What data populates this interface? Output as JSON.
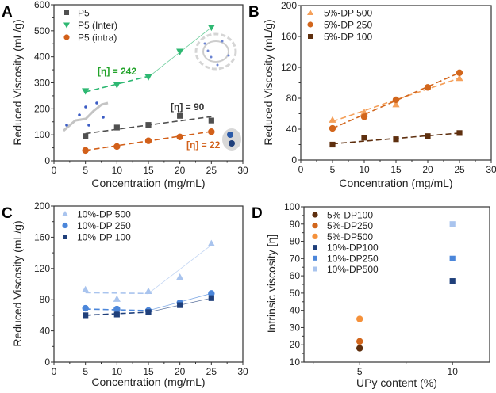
{
  "chart_data": [
    {
      "panel": "A",
      "type": "scatter",
      "xlabel": "Concentration (mg/mL)",
      "ylabel": "Reduced  Viscosity (mL/g)",
      "xlim": [
        0,
        30
      ],
      "ylim": [
        0,
        600
      ],
      "xticks": [
        "0",
        "5",
        "10",
        "15",
        "20",
        "25",
        "30"
      ],
      "yticks": [
        "0",
        "100",
        "200",
        "300",
        "400",
        "500",
        "600"
      ],
      "legend": "top-left",
      "series": [
        {
          "name": "P5",
          "marker": "square",
          "color": "#505050",
          "x": [
            5,
            10,
            15,
            20,
            25
          ],
          "y": [
            95,
            128,
            138,
            173,
            155
          ],
          "fits": [
            {
              "x": [
                5,
                25
              ],
              "y": [
                105,
                170
              ],
              "style": "dashed"
            }
          ]
        },
        {
          "name": "P5 (Inter)",
          "marker": "triangle-down",
          "color": "#2eb872",
          "x": [
            5,
            10,
            15,
            20,
            25
          ],
          "y": [
            268,
            292,
            322,
            420,
            513
          ],
          "fits": [
            {
              "x": [
                5,
                15
              ],
              "y": [
                265,
                325
              ],
              "style": "dashed"
            },
            {
              "x": [
                15,
                25
              ],
              "y": [
                322,
                513
              ],
              "style": "solid-light"
            }
          ]
        },
        {
          "name": "P5 (intra)",
          "marker": "circle",
          "color": "#d2601a",
          "x": [
            5,
            10,
            15,
            20,
            25
          ],
          "y": [
            40,
            55,
            77,
            92,
            112
          ],
          "fits": [
            {
              "x": [
                5,
                25
              ],
              "y": [
                40,
                113
              ],
              "style": "dashed"
            }
          ]
        }
      ],
      "annotations": [
        {
          "text": "[η] = 242",
          "color": "#22a32a"
        },
        {
          "text": "[η] = 90",
          "color": "#333333"
        },
        {
          "text": "[η] = 22",
          "color": "#d2601a"
        }
      ]
    },
    {
      "panel": "B",
      "type": "scatter",
      "xlabel": "Concentration (mg/mL)",
      "ylabel": "Reduced  Viscosity (mL/g)",
      "xlim": [
        0,
        30
      ],
      "ylim": [
        0,
        200
      ],
      "xticks": [
        "0",
        "5",
        "10",
        "15",
        "20",
        "25",
        "30"
      ],
      "yticks": [
        "0",
        "40",
        "80",
        "120",
        "160",
        "200"
      ],
      "legend": "top-left",
      "series": [
        {
          "name": "5%-DP 500",
          "marker": "triangle-up",
          "color": "#f5a05a",
          "x": [
            5,
            10,
            15,
            20,
            25
          ],
          "y": [
            52,
            62,
            72,
            94,
            106
          ],
          "fits": [
            {
              "x": [
                5,
                25
              ],
              "y": [
                50,
                106
              ],
              "style": "dashed"
            }
          ]
        },
        {
          "name": "5%-DP 250",
          "marker": "circle",
          "color": "#d2661c",
          "x": [
            5,
            10,
            15,
            20,
            25
          ],
          "y": [
            41,
            56,
            78,
            94,
            113
          ],
          "fits": [
            {
              "x": [
                5,
                25
              ],
              "y": [
                41,
                113
              ],
              "style": "dashed"
            }
          ]
        },
        {
          "name": "5%-DP 100",
          "marker": "square",
          "color": "#5e2f0e",
          "x": [
            5,
            10,
            15,
            20,
            25
          ],
          "y": [
            20,
            29,
            27,
            31,
            35
          ],
          "fits": [
            {
              "x": [
                5,
                25
              ],
              "y": [
                21,
                35
              ],
              "style": "dashed"
            }
          ]
        }
      ]
    },
    {
      "panel": "C",
      "type": "scatter",
      "xlabel": "Concentration (mg/mL)",
      "ylabel": "Reduced  Viscosity (mL/g)",
      "xlim": [
        0,
        30
      ],
      "ylim": [
        0,
        200
      ],
      "xticks": [
        "0",
        "5",
        "10",
        "15",
        "20",
        "25",
        "30"
      ],
      "yticks": [
        "0",
        "40",
        "80",
        "120",
        "160",
        "200"
      ],
      "legend": "top-left",
      "series": [
        {
          "name": "10%-DP 500",
          "marker": "triangle-up",
          "color": "#a9c4ee",
          "x": [
            5,
            10,
            15,
            20,
            25
          ],
          "y": [
            93,
            81,
            91,
            109,
            152
          ],
          "fits": [
            {
              "x": [
                5,
                15
              ],
              "y": [
                89,
                88
              ],
              "style": "dashed"
            },
            {
              "x": [
                15,
                25
              ],
              "y": [
                88,
                150
              ],
              "style": "solid-light"
            }
          ]
        },
        {
          "name": "10%-DP 250",
          "marker": "circle",
          "color": "#4b86da",
          "x": [
            5,
            10,
            15,
            20,
            25
          ],
          "y": [
            69,
            68,
            66,
            76,
            88
          ],
          "fits": [
            {
              "x": [
                5,
                15
              ],
              "y": [
                68,
                66
              ],
              "style": "dashed"
            },
            {
              "x": [
                15,
                25
              ],
              "y": [
                66,
                88
              ],
              "style": "solid-light"
            }
          ]
        },
        {
          "name": "10%-DP 100",
          "marker": "square",
          "color": "#1f3f7a",
          "x": [
            5,
            10,
            15,
            20,
            25
          ],
          "y": [
            60,
            61,
            64,
            73,
            82
          ],
          "fits": [
            {
              "x": [
                5,
                15
              ],
              "y": [
                60,
                64
              ],
              "style": "dashed"
            },
            {
              "x": [
                15,
                25
              ],
              "y": [
                64,
                82
              ],
              "style": "solid-light"
            }
          ]
        }
      ]
    },
    {
      "panel": "D",
      "type": "scatter",
      "xlabel": "UPy content (%)",
      "ylabel": "Intrinsic viscosity [η]",
      "xlim": [
        2,
        12
      ],
      "ylim": [
        10,
        100
      ],
      "xticks": [
        "5",
        "10"
      ],
      "yticks": [
        "10",
        "20",
        "30",
        "40",
        "50",
        "60",
        "70",
        "80",
        "90",
        "100"
      ],
      "legend": "top-left",
      "series": [
        {
          "name": "5%-DP100",
          "marker": "circle",
          "color": "#5e2f0e",
          "x": [
            5
          ],
          "y": [
            18
          ]
        },
        {
          "name": "5%-DP250",
          "marker": "circle",
          "color": "#d2661c",
          "x": [
            5
          ],
          "y": [
            22
          ]
        },
        {
          "name": "5%-DP500",
          "marker": "circle",
          "color": "#f5913a",
          "x": [
            5
          ],
          "y": [
            35
          ]
        },
        {
          "name": "10%-DP100",
          "marker": "square",
          "color": "#1f3f7a",
          "x": [
            10
          ],
          "y": [
            57
          ]
        },
        {
          "name": "10%-DP250",
          "marker": "square",
          "color": "#4b86da",
          "x": [
            10
          ],
          "y": [
            70
          ]
        },
        {
          "name": "10%-DP500",
          "marker": "square",
          "color": "#a9c4ee",
          "x": [
            10
          ],
          "y": [
            90
          ]
        }
      ]
    }
  ]
}
